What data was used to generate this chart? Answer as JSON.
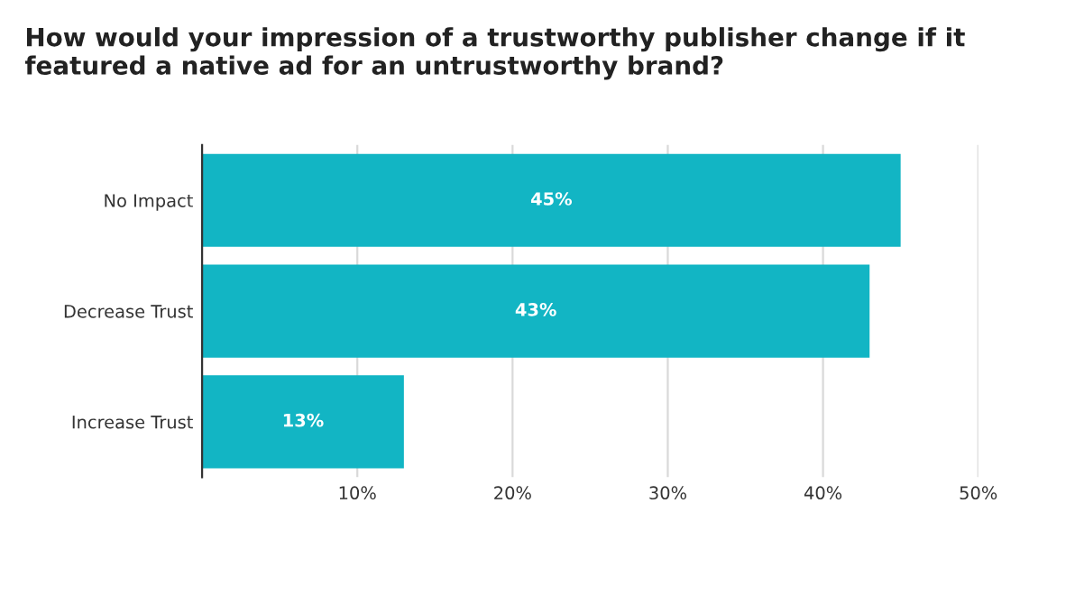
{
  "chart_data": {
    "type": "bar",
    "orientation": "horizontal",
    "title": "How would your impression of a trustworthy publisher change if it featured a native ad for an untrustworthy brand?",
    "categories": [
      "No Impact",
      "Decrease Trust",
      "Increase Trust"
    ],
    "values": [
      45,
      43,
      13
    ],
    "color": "#12b5c4",
    "value_labels": [
      "45%",
      "43%",
      "13%"
    ],
    "xlim": [
      0,
      50
    ],
    "xticks": [
      {
        "value": 10,
        "label": "10%"
      },
      {
        "value": 20,
        "label": "20%"
      },
      {
        "value": 30,
        "label": "30%"
      },
      {
        "value": 40,
        "label": "40%"
      },
      {
        "value": 50,
        "label": "50%"
      }
    ],
    "grid": "x"
  }
}
